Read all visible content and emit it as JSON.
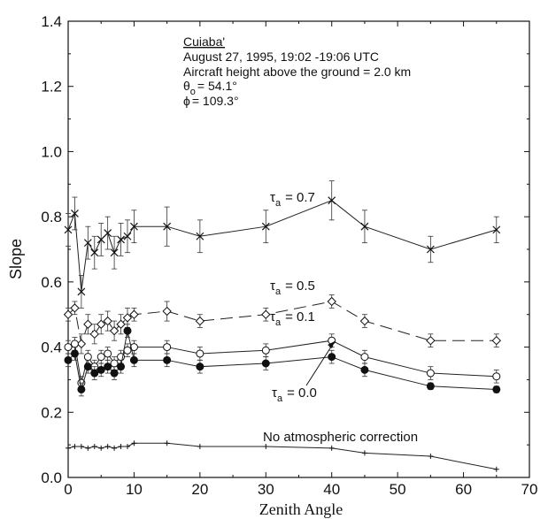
{
  "chart_data": {
    "type": "line",
    "xlabel": "Zenith Angle",
    "ylabel": "Slope",
    "xlim": [
      0,
      70
    ],
    "ylim": [
      0,
      1.4
    ],
    "xticks": [
      "0",
      "10",
      "20",
      "30",
      "40",
      "50",
      "60",
      "70"
    ],
    "yticks": [
      "0.0",
      "0.2",
      "0.4",
      "0.6",
      "0.8",
      "1.0",
      "1.2",
      "1.4"
    ],
    "annotation": {
      "site": "Cuiaba'",
      "date": "August 27, 1995, 19:02 -19:06 UTC",
      "height": "Aircraft height above the ground = 2.0 km",
      "theta": "θ",
      "theta_sub": "o",
      "theta_val": "= 54.1°",
      "phi": "ϕ",
      "phi_val": "= 109.3°"
    },
    "series": [
      {
        "name": "τa = 0.7",
        "label_main": "τ",
        "label_sub": "a",
        "label_val": "= 0.7",
        "marker": "x",
        "dash": "",
        "x": [
          0,
          1,
          2,
          3,
          4,
          5,
          6,
          7,
          8,
          9,
          10,
          15,
          20,
          30,
          40,
          45,
          55,
          65
        ],
        "y": [
          0.76,
          0.81,
          0.57,
          0.72,
          0.69,
          0.73,
          0.75,
          0.69,
          0.73,
          0.74,
          0.77,
          0.77,
          0.74,
          0.77,
          0.85,
          0.77,
          0.7,
          0.76
        ],
        "err": [
          0.05,
          0.05,
          0.05,
          0.05,
          0.05,
          0.05,
          0.05,
          0.05,
          0.05,
          0.05,
          0.05,
          0.06,
          0.05,
          0.05,
          0.06,
          0.05,
          0.04,
          0.04
        ]
      },
      {
        "name": "τa = 0.5",
        "label_main": "τ",
        "label_sub": "a",
        "label_val": "= 0.5",
        "marker": "diamond",
        "dash": "14,7",
        "x": [
          0,
          1,
          2,
          3,
          4,
          5,
          6,
          7,
          8,
          9,
          10,
          15,
          20,
          30,
          40,
          45,
          55,
          65
        ],
        "y": [
          0.5,
          0.52,
          0.41,
          0.47,
          0.44,
          0.47,
          0.48,
          0.45,
          0.47,
          0.49,
          0.5,
          0.51,
          0.48,
          0.5,
          0.54,
          0.48,
          0.42,
          0.42
        ],
        "err": [
          0.02,
          0.02,
          0.03,
          0.03,
          0.03,
          0.03,
          0.03,
          0.03,
          0.03,
          0.03,
          0.02,
          0.03,
          0.02,
          0.02,
          0.02,
          0.02,
          0.02,
          0.02
        ]
      },
      {
        "name": "τa = 0.1",
        "label_main": "τ",
        "label_sub": "a",
        "label_val": "= 0.1",
        "marker": "circle-open",
        "dash": "",
        "x": [
          0,
          1,
          2,
          3,
          4,
          5,
          6,
          7,
          8,
          9,
          10,
          15,
          20,
          30,
          40,
          45,
          55,
          65
        ],
        "y": [
          0.4,
          0.41,
          0.29,
          0.37,
          0.34,
          0.37,
          0.38,
          0.35,
          0.37,
          0.39,
          0.4,
          0.4,
          0.38,
          0.39,
          0.42,
          0.37,
          0.32,
          0.31
        ],
        "err": [
          0.02,
          0.02,
          0.02,
          0.02,
          0.02,
          0.02,
          0.02,
          0.02,
          0.02,
          0.02,
          0.02,
          0.02,
          0.02,
          0.02,
          0.02,
          0.02,
          0.02,
          0.02
        ]
      },
      {
        "name": "τa = 0.0",
        "label_main": "τ",
        "label_sub": "a",
        "label_val": "= 0.0",
        "marker": "circle-filled",
        "dash": "",
        "x": [
          0,
          1,
          2,
          3,
          4,
          5,
          6,
          7,
          8,
          9,
          10,
          15,
          20,
          30,
          40,
          45,
          55,
          65
        ],
        "y": [
          0.36,
          0.38,
          0.27,
          0.34,
          0.32,
          0.33,
          0.34,
          0.32,
          0.34,
          0.45,
          0.36,
          0.36,
          0.34,
          0.35,
          0.37,
          0.33,
          0.28,
          0.27
        ],
        "err": [
          0.02,
          0.02,
          0.02,
          0.02,
          0.02,
          0.02,
          0.02,
          0.02,
          0.02,
          0.02,
          0.02,
          0.02,
          0.02,
          0.02,
          0.02,
          0.02,
          0.01,
          0.01
        ]
      },
      {
        "name": "No atmospheric correction",
        "label_text": "No atmospheric correction",
        "marker": "plus",
        "dash": "",
        "x": [
          0,
          1,
          2,
          3,
          4,
          5,
          6,
          7,
          8,
          9,
          10,
          15,
          20,
          30,
          40,
          45,
          55,
          65
        ],
        "y": [
          0.09,
          0.095,
          0.095,
          0.09,
          0.095,
          0.09,
          0.095,
          0.09,
          0.095,
          0.095,
          0.105,
          0.105,
          0.095,
          0.095,
          0.09,
          0.075,
          0.065,
          0.025
        ],
        "err": []
      }
    ]
  }
}
